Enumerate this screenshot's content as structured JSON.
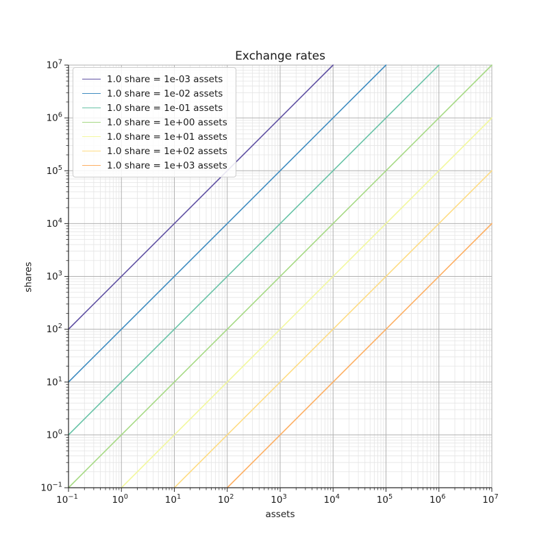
{
  "figure": {
    "background": "#ffffff",
    "text_color": "#1a1a1a"
  },
  "chart_data": {
    "type": "line",
    "title": "Exchange rates",
    "xlabel": "assets",
    "ylabel": "shares",
    "x_scale": "log",
    "y_scale": "log",
    "x_range_exp": [
      -1,
      7
    ],
    "y_range_exp": [
      -1,
      7
    ],
    "x_tick_exponents": [
      -1,
      0,
      1,
      2,
      3,
      4,
      5,
      6,
      7
    ],
    "y_tick_exponents": [
      -1,
      0,
      1,
      2,
      3,
      4,
      5,
      6,
      7
    ],
    "grid": {
      "major_color": "#b0b0b0",
      "minor_color": "#e4e4e4",
      "enabled": true
    },
    "spine_color": "#262626",
    "legend_position": "upper left",
    "series": [
      {
        "name": "1.0 share = 1e-03 assets",
        "color": "#5e4fa2",
        "assets_per_share": 0.001,
        "endpoints_log10": {
          "x": [
            -1,
            4
          ],
          "y": [
            2,
            7
          ]
        }
      },
      {
        "name": "1.0 share = 1e-02 assets",
        "color": "#3d8bc0",
        "assets_per_share": 0.01,
        "endpoints_log10": {
          "x": [
            -1,
            5
          ],
          "y": [
            1,
            7
          ]
        }
      },
      {
        "name": "1.0 share = 1e-01 assets",
        "color": "#66c2a5",
        "assets_per_share": 0.1,
        "endpoints_log10": {
          "x": [
            -1,
            6
          ],
          "y": [
            0,
            7
          ]
        }
      },
      {
        "name": "1.0 share = 1e+00 assets",
        "color": "#a5d983",
        "assets_per_share": 1.0,
        "endpoints_log10": {
          "x": [
            -1,
            7
          ],
          "y": [
            -1,
            7
          ]
        }
      },
      {
        "name": "1.0 share = 1e+01 assets",
        "color": "#f2f89c",
        "assets_per_share": 10.0,
        "endpoints_log10": {
          "x": [
            0,
            7
          ],
          "y": [
            -1,
            6
          ]
        }
      },
      {
        "name": "1.0 share = 1e+02 assets",
        "color": "#fedc82",
        "assets_per_share": 100.0,
        "endpoints_log10": {
          "x": [
            1,
            7
          ],
          "y": [
            -1,
            5
          ]
        }
      },
      {
        "name": "1.0 share = 1e+03 assets",
        "color": "#fdae61",
        "assets_per_share": 1000.0,
        "endpoints_log10": {
          "x": [
            2,
            7
          ],
          "y": [
            -1,
            4
          ]
        }
      }
    ]
  }
}
